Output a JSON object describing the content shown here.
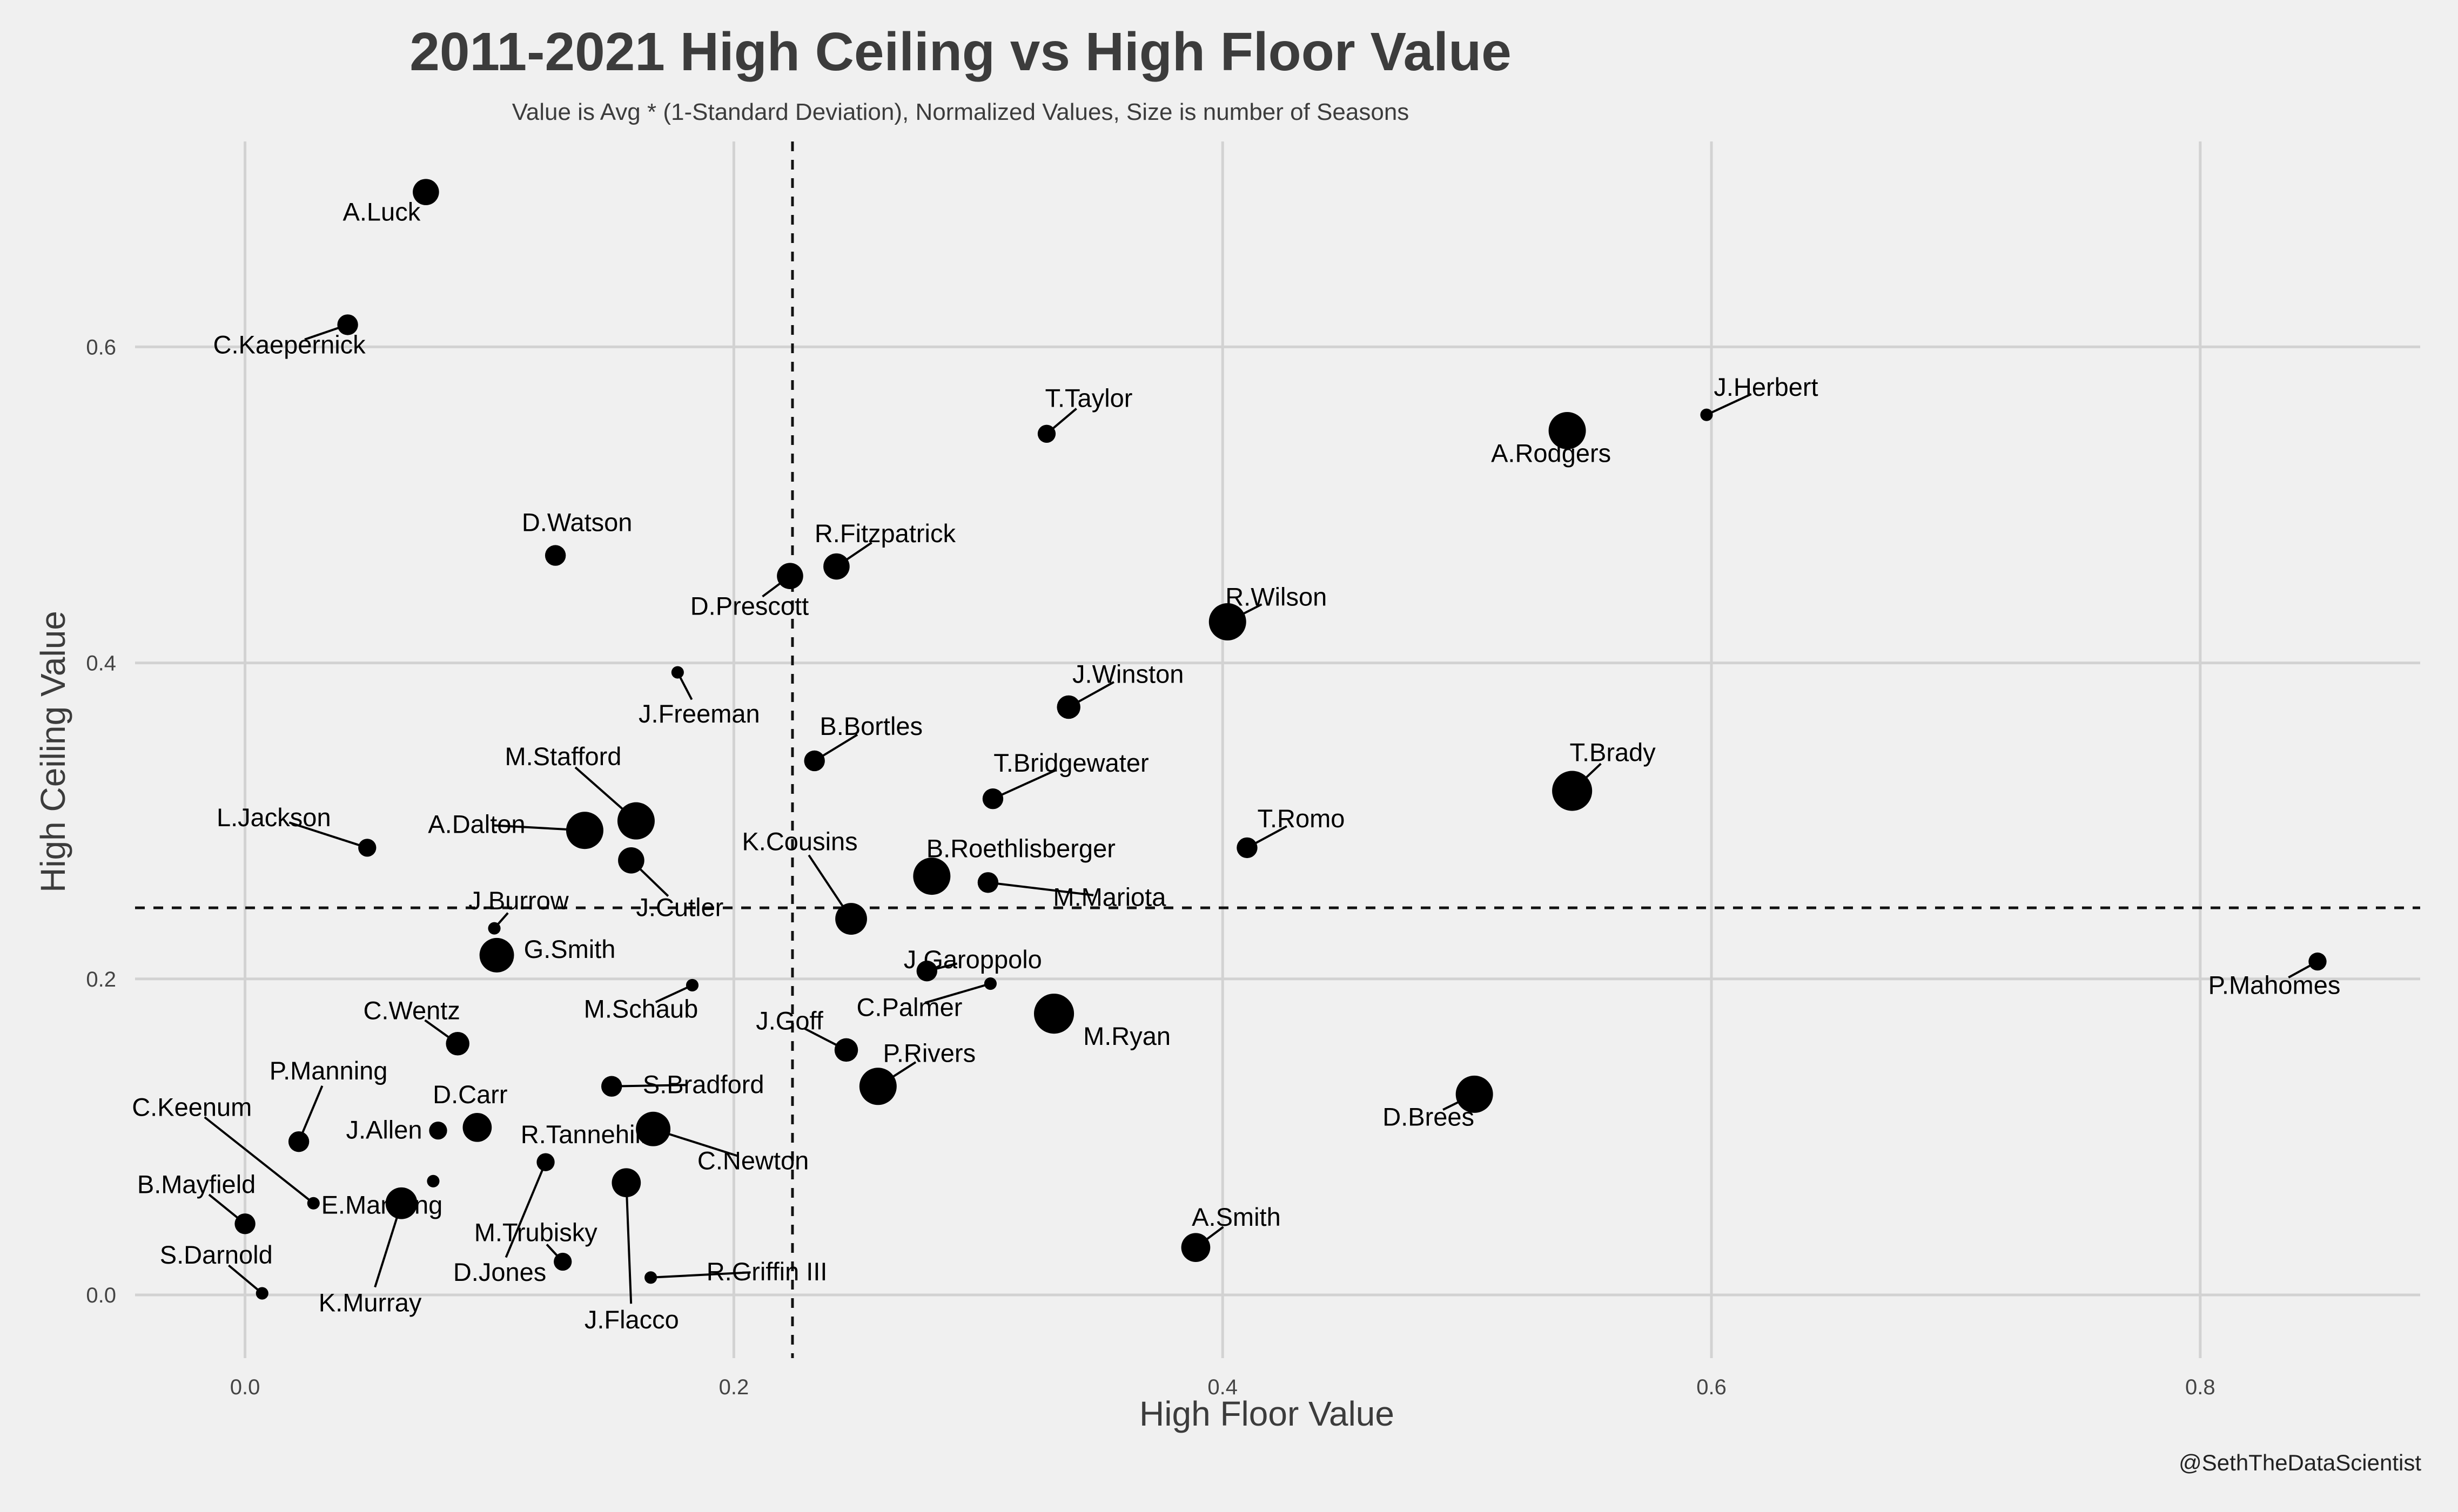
{
  "chart_data": {
    "type": "scatter",
    "title": "2011-2021 High Ceiling vs High Floor Value",
    "subtitle": "Value is Avg * (1-Standard Deviation), Normalized Values, Size is number of Seasons",
    "xlabel": "High Floor Value",
    "ylabel": "High Ceiling Value",
    "caption": "@SethTheDataScientist",
    "xlim": [
      -0.045,
      0.89
    ],
    "ylim": [
      -0.04,
      0.73
    ],
    "xticks": [
      "0.0",
      "0.2",
      "0.4",
      "0.6",
      "0.8"
    ],
    "yticks": [
      "0.0",
      "0.2",
      "0.4",
      "0.6"
    ],
    "grid": true,
    "reference_lines": {
      "x": 0.224,
      "y": 0.245
    },
    "points": [
      {
        "name": "A.Luck",
        "x": 0.074,
        "y": 0.698,
        "seasons": 6
      },
      {
        "name": "C.Kaepernick",
        "x": 0.042,
        "y": 0.614,
        "seasons": 4
      },
      {
        "name": "T.Taylor",
        "x": 0.328,
        "y": 0.545,
        "seasons": 3
      },
      {
        "name": "J.Herbert",
        "x": 0.598,
        "y": 0.557,
        "seasons": 1
      },
      {
        "name": "A.Rodgers",
        "x": 0.541,
        "y": 0.547,
        "seasons": 10
      },
      {
        "name": "D.Watson",
        "x": 0.127,
        "y": 0.468,
        "seasons": 4
      },
      {
        "name": "R.Fitzpatrick",
        "x": 0.242,
        "y": 0.461,
        "seasons": 6
      },
      {
        "name": "D.Prescott",
        "x": 0.223,
        "y": 0.455,
        "seasons": 6
      },
      {
        "name": "R.Wilson",
        "x": 0.402,
        "y": 0.426,
        "seasons": 10
      },
      {
        "name": "J.Freeman",
        "x": 0.177,
        "y": 0.394,
        "seasons": 1
      },
      {
        "name": "J.Winston",
        "x": 0.337,
        "y": 0.372,
        "seasons": 5
      },
      {
        "name": "B.Bortles",
        "x": 0.233,
        "y": 0.338,
        "seasons": 4
      },
      {
        "name": "T.Bridgewater",
        "x": 0.306,
        "y": 0.314,
        "seasons": 4
      },
      {
        "name": "T.Brady",
        "x": 0.543,
        "y": 0.319,
        "seasons": 11
      },
      {
        "name": "M.Stafford",
        "x": 0.16,
        "y": 0.3,
        "seasons": 10
      },
      {
        "name": "A.Dalton",
        "x": 0.139,
        "y": 0.294,
        "seasons": 10
      },
      {
        "name": "L.Jackson",
        "x": 0.05,
        "y": 0.283,
        "seasons": 3
      },
      {
        "name": "T.Romo",
        "x": 0.41,
        "y": 0.283,
        "seasons": 4
      },
      {
        "name": "J.Cutler",
        "x": 0.158,
        "y": 0.275,
        "seasons": 6
      },
      {
        "name": "B.Roethlisberger",
        "x": 0.281,
        "y": 0.265,
        "seasons": 10
      },
      {
        "name": "M.Mariota",
        "x": 0.304,
        "y": 0.261,
        "seasons": 4
      },
      {
        "name": "K.Cousins",
        "x": 0.248,
        "y": 0.238,
        "seasons": 8
      },
      {
        "name": "J.Burrow",
        "x": 0.102,
        "y": 0.232,
        "seasons": 1
      },
      {
        "name": "G.Smith",
        "x": 0.103,
        "y": 0.215,
        "seasons": 9
      },
      {
        "name": "J.Garoppolo",
        "x": 0.279,
        "y": 0.205,
        "seasons": 4
      },
      {
        "name": "M.Schaub",
        "x": 0.183,
        "y": 0.196,
        "seasons": 1
      },
      {
        "name": "C.Palmer",
        "x": 0.305,
        "y": 0.197,
        "seasons": 1
      },
      {
        "name": "M.Ryan",
        "x": 0.331,
        "y": 0.178,
        "seasons": 11
      },
      {
        "name": "C.Wentz",
        "x": 0.087,
        "y": 0.159,
        "seasons": 5
      },
      {
        "name": "J.Goff",
        "x": 0.246,
        "y": 0.155,
        "seasons": 5
      },
      {
        "name": "P.Rivers",
        "x": 0.259,
        "y": 0.132,
        "seasons": 10
      },
      {
        "name": "S.Bradford",
        "x": 0.15,
        "y": 0.132,
        "seasons": 4
      },
      {
        "name": "D.Brees",
        "x": 0.503,
        "y": 0.127,
        "seasons": 10
      },
      {
        "name": "D.Carr",
        "x": 0.095,
        "y": 0.106,
        "seasons": 7
      },
      {
        "name": "C.Newton",
        "x": 0.167,
        "y": 0.105,
        "seasons": 9
      },
      {
        "name": "J.Allen",
        "x": 0.079,
        "y": 0.104,
        "seasons": 3
      },
      {
        "name": "P.Manning",
        "x": 0.022,
        "y": 0.097,
        "seasons": 4
      },
      {
        "name": "R.Tannehill",
        "x": 0.123,
        "y": 0.084,
        "seasons": 1
      },
      {
        "name": "E.Manning",
        "x": 0.077,
        "y": 0.072,
        "seasons": 1
      },
      {
        "name": "J.Flacco",
        "x": 0.156,
        "y": 0.071,
        "seasons": 7
      },
      {
        "name": "K.Murray",
        "x": 0.064,
        "y": 0.058,
        "seasons": 8
      },
      {
        "name": "C.Keenum",
        "x": 0.028,
        "y": 0.058,
        "seasons": 1
      },
      {
        "name": "B.Mayfield",
        "x": 0.0,
        "y": 0.045,
        "seasons": 4
      },
      {
        "name": "A.Smith",
        "x": 0.389,
        "y": 0.03,
        "seasons": 7
      },
      {
        "name": "M.Trubisky",
        "x": 0.13,
        "y": 0.021,
        "seasons": 3
      },
      {
        "name": "R.Griffin III",
        "x": 0.166,
        "y": 0.011,
        "seasons": 1
      },
      {
        "name": "S.Darnold",
        "x": 0.007,
        "y": 0.001,
        "seasons": 1
      },
      {
        "name": "D.Jones",
        "x": 0.123,
        "y": 0.084,
        "seasons": 3
      },
      {
        "name": "P.Mahomes",
        "x": 0.848,
        "y": 0.211,
        "seasons": 3
      }
    ]
  }
}
